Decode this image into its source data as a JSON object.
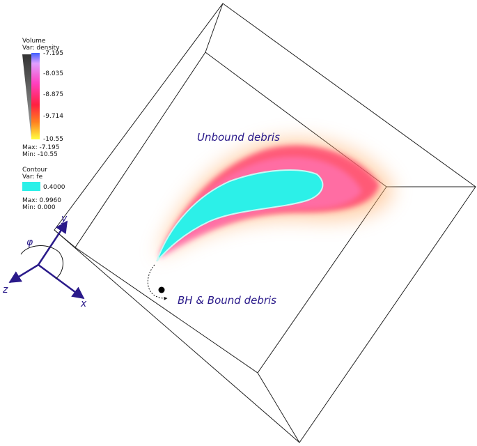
{
  "volume_legend": {
    "title": "Volume",
    "var": "Var: density",
    "ticks": [
      "-7.195",
      "-8.035",
      "-8.875",
      "-9.714",
      "-10.55"
    ],
    "max": "Max: -7.195",
    "min": "Min: -10.55"
  },
  "contour_legend": {
    "title": "Contour",
    "var": "Var: fe",
    "level": "0.4000",
    "max": "Max: 0.9960",
    "min": "Min: 0.000"
  },
  "annotations": {
    "unbound": "Unbound debris",
    "bound": "BH & Bound debris"
  },
  "axes": {
    "x": "x",
    "y": "y",
    "z": "z",
    "angle": "φ"
  }
}
